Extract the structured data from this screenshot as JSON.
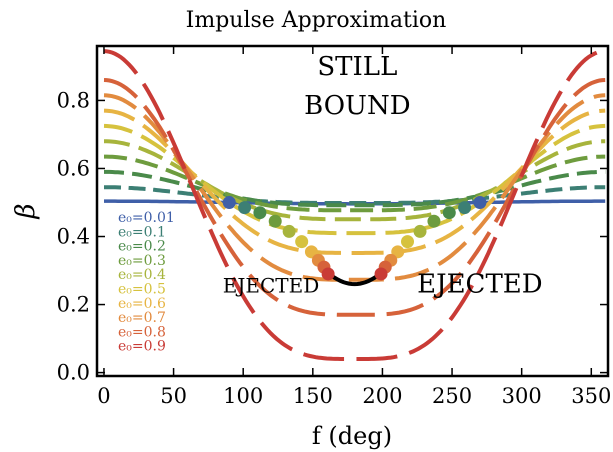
{
  "chart_data": {
    "type": "line",
    "title": "Impulse Approximation",
    "xlabel": "f (deg)",
    "ylabel": "β",
    "xlim": [
      -5,
      362
    ],
    "ylim": [
      -0.01,
      0.96
    ],
    "xticks": [
      0,
      50,
      100,
      150,
      200,
      250,
      300,
      350
    ],
    "yticks": [
      0.0,
      0.2,
      0.4,
      0.6,
      0.8
    ],
    "ytick_labels": [
      "0.0",
      "0.2",
      "0.4",
      "0.6",
      "0.8"
    ],
    "grid": false,
    "legend": "left",
    "annotations": [
      {
        "text": "STILL",
        "x": 182,
        "y": 0.875
      },
      {
        "text": "BOUND",
        "x": 182,
        "y": 0.76
      },
      {
        "text": "EJECTED",
        "x": 120,
        "y": 0.235
      },
      {
        "text": "EJECTED",
        "x": 270,
        "y": 0.235
      }
    ],
    "series": [
      {
        "name": "e₀=0.01",
        "e": 0.01,
        "color": "#3f5fa8",
        "style": "solid"
      },
      {
        "name": "e₀=0.1",
        "e": 0.1,
        "color": "#3c7f74",
        "style": "dashed"
      },
      {
        "name": "e₀=0.2",
        "e": 0.2,
        "color": "#4a8a4a",
        "style": "dashed"
      },
      {
        "name": "e₀=0.3",
        "e": 0.3,
        "color": "#6e9c3e",
        "style": "dashed"
      },
      {
        "name": "e₀=0.4",
        "e": 0.4,
        "color": "#a7b43c",
        "style": "dashed"
      },
      {
        "name": "e₀=0.5",
        "e": 0.5,
        "color": "#d6c23e",
        "style": "dashed"
      },
      {
        "name": "e₀=0.6",
        "e": 0.6,
        "color": "#e7b443",
        "style": "dashed"
      },
      {
        "name": "e₀=0.7",
        "e": 0.7,
        "color": "#e28b3f",
        "style": "dashed"
      },
      {
        "name": "e₀=0.8",
        "e": 0.8,
        "color": "#d6623a",
        "style": "dashed"
      },
      {
        "name": "e₀=0.9",
        "e": 0.9,
        "color": "#c93b36",
        "style": "dashed"
      }
    ],
    "boundary": {
      "name": "",
      "color": "#000000"
    },
    "marker_points": [
      {
        "x": 90,
        "y": 0.5,
        "color": "#3f5fa8"
      },
      {
        "x": 270,
        "y": 0.5,
        "color": "#3f5fa8"
      },
      {
        "x": 101,
        "y": 0.485,
        "color": "#3c7f74"
      },
      {
        "x": 259,
        "y": 0.485,
        "color": "#3c7f74"
      },
      {
        "x": 112,
        "y": 0.47,
        "color": "#4a8a4a"
      },
      {
        "x": 248,
        "y": 0.47,
        "color": "#4a8a4a"
      },
      {
        "x": 123,
        "y": 0.445,
        "color": "#6e9c3e"
      },
      {
        "x": 237,
        "y": 0.445,
        "color": "#6e9c3e"
      },
      {
        "x": 133,
        "y": 0.415,
        "color": "#a7b43c"
      },
      {
        "x": 227,
        "y": 0.415,
        "color": "#a7b43c"
      },
      {
        "x": 142,
        "y": 0.385,
        "color": "#d6c23e"
      },
      {
        "x": 218,
        "y": 0.385,
        "color": "#d6c23e"
      },
      {
        "x": 149,
        "y": 0.355,
        "color": "#e7b443"
      },
      {
        "x": 211,
        "y": 0.355,
        "color": "#e7b443"
      },
      {
        "x": 154,
        "y": 0.33,
        "color": "#e28b3f"
      },
      {
        "x": 206,
        "y": 0.33,
        "color": "#e28b3f"
      },
      {
        "x": 158,
        "y": 0.31,
        "color": "#d6623a"
      },
      {
        "x": 202,
        "y": 0.31,
        "color": "#d6623a"
      },
      {
        "x": 161,
        "y": 0.29,
        "color": "#c93b36"
      },
      {
        "x": 199,
        "y": 0.29,
        "color": "#c93b36"
      }
    ]
  }
}
